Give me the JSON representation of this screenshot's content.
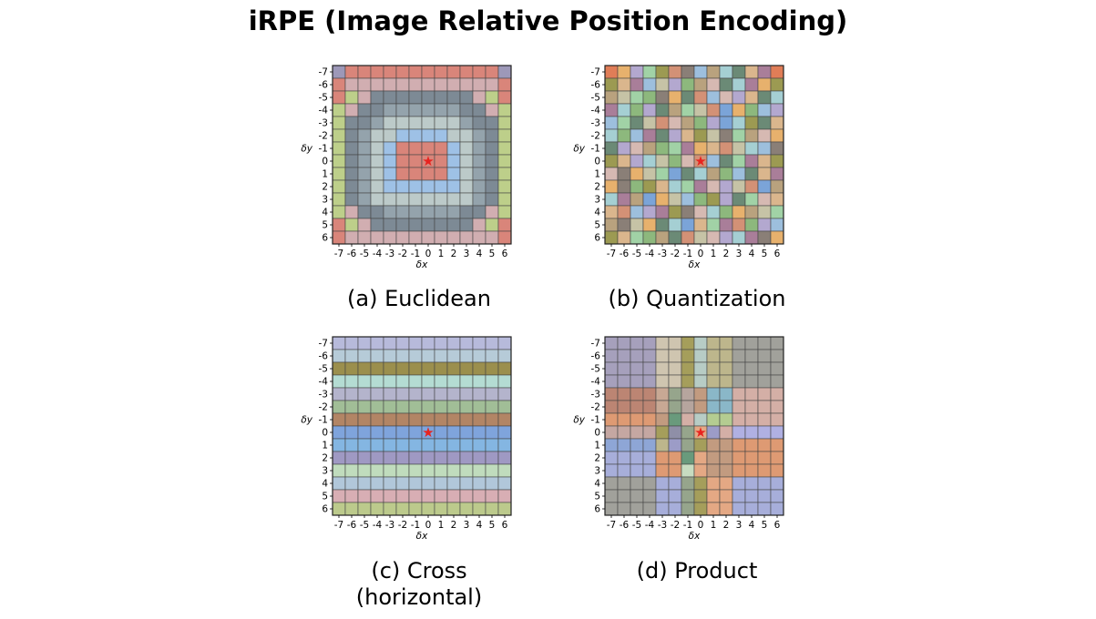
{
  "title": "iRPE (Image Relative Position Encoding)",
  "axes": {
    "x_label": "δx",
    "y_label": "δy",
    "ticks": [
      "-7",
      "-6",
      "-5",
      "-4",
      "-3",
      "-2",
      "-1",
      "0",
      "1",
      "2",
      "3",
      "4",
      "5",
      "6"
    ]
  },
  "marker_glyph": "★",
  "colors": {
    "grid_line": "#444444",
    "marker": "#e8231f"
  },
  "palettes": {
    "euclidean": [
      "#d9857a",
      "#9ec1e6",
      "#94a3ac",
      "#bccac9",
      "#7d8a95",
      "#d1aeb1",
      "#bdcf8a",
      "#9d98b8",
      "#a8c98d",
      "#cfc6b7"
    ],
    "quantization": [
      "#e07d57",
      "#e7b16d",
      "#b3a8cf",
      "#a1d2a6",
      "#9c9a52",
      "#d39176",
      "#8a7f77",
      "#9dbfdd",
      "#b9a27e",
      "#a5cfd3",
      "#6b8a76",
      "#dab68d",
      "#a97e99",
      "#c6c3a6",
      "#8db87d",
      "#d6b9b2",
      "#7ba4d8"
    ],
    "cross": [
      "#b7badb",
      "#b6cbd8",
      "#9b8f4d",
      "#b4dcd3",
      "#b4b4cc",
      "#a1be97",
      "#b28565",
      "#7fa4dc",
      "#84b6e2",
      "#9f99c3",
      "#c0dcbd",
      "#b1c7da",
      "#d8aeb4",
      "#bcca8c"
    ],
    "product": [
      "#a6a0bc",
      "#c5a7a2",
      "#bc8573",
      "#de9a73",
      "#a7aeda",
      "#8ea6d6",
      "#b6a59e",
      "#9c9cc7",
      "#a1a19b",
      "#8f8fa7",
      "#c7dcc0",
      "#699a7c",
      "#cfc5b0",
      "#a59e5b",
      "#bdb68c",
      "#e4a884",
      "#c29b80",
      "#b7ccc5",
      "#c8a894",
      "#96a58c",
      "#d4afa6",
      "#8ab7c8",
      "#b4cc91",
      "#b0b0e2"
    ]
  },
  "panels": [
    {
      "id": "euclidean",
      "caption": "(a) Euclidean",
      "map": [
        "70000000000007",
        "05555555555550",
        "06544444444560",
        "65442222224456",
        "64423333332446",
        "64233111133246",
        "64231000013246",
        "64231000013246",
        "64231000013246",
        "64231111113246",
        "64233333333246",
        "65442222224456",
        "06544444444560",
        "05555555555550"
      ]
    },
    {
      "id": "quantization",
      "caption": "(b) Quantization",
      "map": [
        "0123456789ABC0",
        "4BC7D2E8FA9C14",
        "8D3E61A57F2BA9",
        "C9E2A83D5G1E72",
        "73AD5F8E2G94AB",
        "9E7CA2B4D638F1",
        "A2F8E3C1B5D976",
        "4B29DEF57A3CB4",
        "F61D3GA98E7ABC",
        "16E4B93CF2D5G8",
        "9C8G1D7E42A3FB",
        "B572C46F9E18D3",
        "86D1A9GB3C5E27",
        "4B3E8A5DF29C61"
      ]
    },
    {
      "id": "cross",
      "caption_lines": [
        "(c) Cross",
        "(horizontal)"
      ],
      "rows": [
        0,
        1,
        2,
        3,
        4,
        5,
        6,
        7,
        8,
        9,
        10,
        11,
        12,
        13
      ]
    },
    {
      "id": "product",
      "caption": "(d) Product",
      "map": [
        "0000CCDHEE8888",
        "0000CCDHEE8888",
        "0000CCDHEE8888",
        "0000CCDHEE8888",
        "2222IJ6GLLKKKK",
        "2222IJ6GLLKKKK",
        "3333GBKHMMKKKK",
        "1111D9JF7KNNNN",
        "5555E7JDGGRRRR",
        "4444RRBFGGRRRR",
        "4444RRAFGGRRRR",
        "8888SSJDFFSSSS",
        "8888SSJDFFSSSS",
        "8888SSJDFFSSSS"
      ]
    }
  ]
}
